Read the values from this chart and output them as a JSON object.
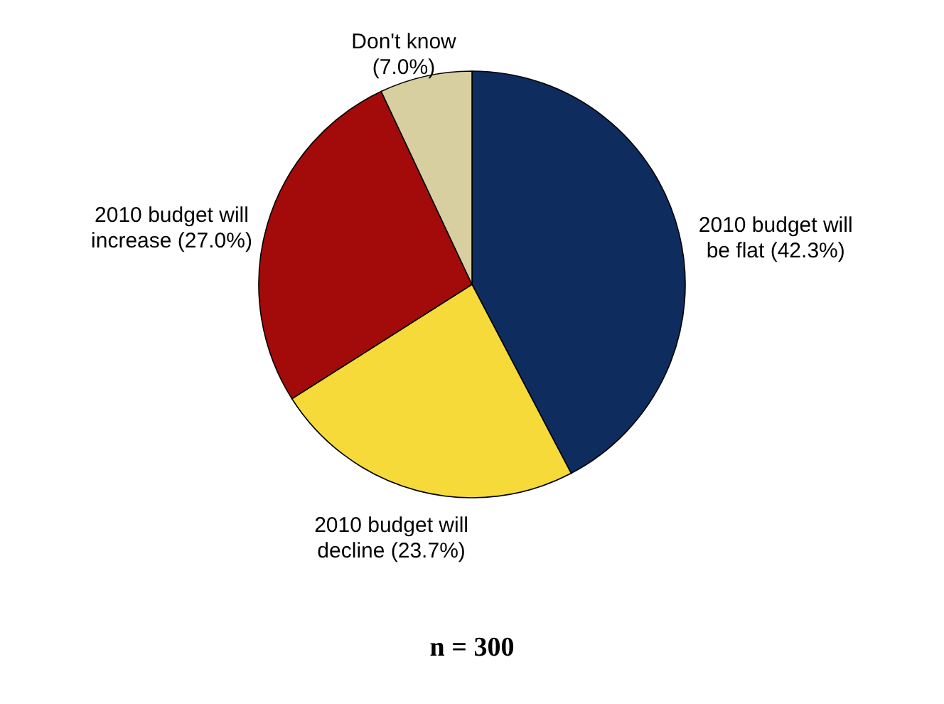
{
  "chart_data": {
    "type": "pie",
    "categories": [
      "2010 budget will be flat",
      "2010 budget will decline",
      "2010 budget will increase",
      "Don't know"
    ],
    "values": [
      42.3,
      23.7,
      27.0,
      7.0
    ],
    "value_labels": [
      "(42.3%)",
      "(23.7%)",
      "(27.0%)",
      "(7.0%)"
    ],
    "colors": [
      "#0e2c5e",
      "#f5da3a",
      "#a30a0a",
      "#d8cfa0"
    ],
    "annotations": [
      "n = 300"
    ]
  }
}
